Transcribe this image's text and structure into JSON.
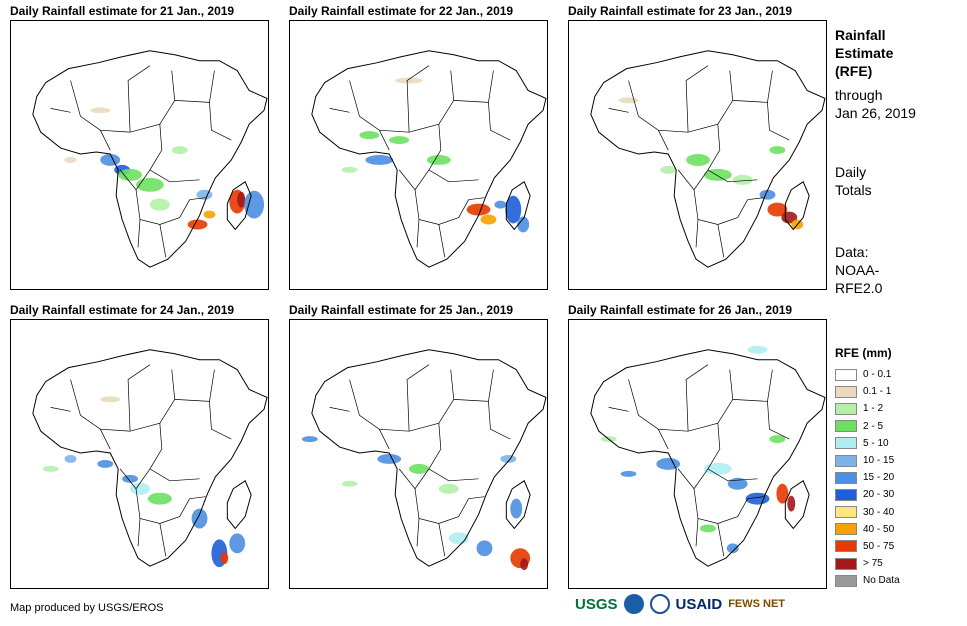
{
  "panels": [
    {
      "title": "Daily Rainfall estimate for 21 Jan., 2019",
      "rain_pattern": "heavy-madagascar-mozambique"
    },
    {
      "title": "Daily Rainfall estimate for 22 Jan., 2019",
      "rain_pattern": "heavy-mozambique-channel"
    },
    {
      "title": "Daily Rainfall estimate for 23 Jan., 2019",
      "rain_pattern": "heavy-southeast-madagascar"
    },
    {
      "title": "Daily Rainfall estimate for 24 Jan., 2019",
      "rain_pattern": "heavy-mozambique-coast"
    },
    {
      "title": "Daily Rainfall estimate for 25 Jan., 2019",
      "rain_pattern": "heavy-south-madagascar"
    },
    {
      "title": "Daily Rainfall estimate for 26 Jan., 2019",
      "rain_pattern": "heavy-madagascar-west"
    }
  ],
  "sidebar": {
    "title_lines": [
      "Rainfall",
      "Estimate",
      "(RFE)"
    ],
    "through_lines": [
      "through",
      "Jan 26, 2019"
    ],
    "totals_lines": [
      "Daily",
      "Totals"
    ],
    "data_lines": [
      "Data:",
      "NOAA-",
      "RFE2.0"
    ]
  },
  "legend": {
    "title": "RFE (mm)",
    "items": [
      {
        "label": "0 - 0.1",
        "color": "#ffffff"
      },
      {
        "label": "0.1 - 1",
        "color": "#ead9bd"
      },
      {
        "label": "1 - 2",
        "color": "#b4f0a8"
      },
      {
        "label": "2 - 5",
        "color": "#6de05f"
      },
      {
        "label": "5 - 10",
        "color": "#aeeef2"
      },
      {
        "label": "10 - 15",
        "color": "#7fb3e8"
      },
      {
        "label": "15 - 20",
        "color": "#4d8fe0"
      },
      {
        "label": "20 - 30",
        "color": "#1f5ed6"
      },
      {
        "label": "30 - 40",
        "color": "#ffe680"
      },
      {
        "label": "40 - 50",
        "color": "#f5a200"
      },
      {
        "label": "50 - 75",
        "color": "#e63a00"
      },
      {
        "label": "> 75",
        "color": "#a31818"
      },
      {
        "label": "No Data",
        "color": "#999999"
      }
    ]
  },
  "credit": "Map produced by USGS/EROS",
  "logos": {
    "usgs": "USGS",
    "usaid": "USAID",
    "fews": "FEWS NET"
  }
}
